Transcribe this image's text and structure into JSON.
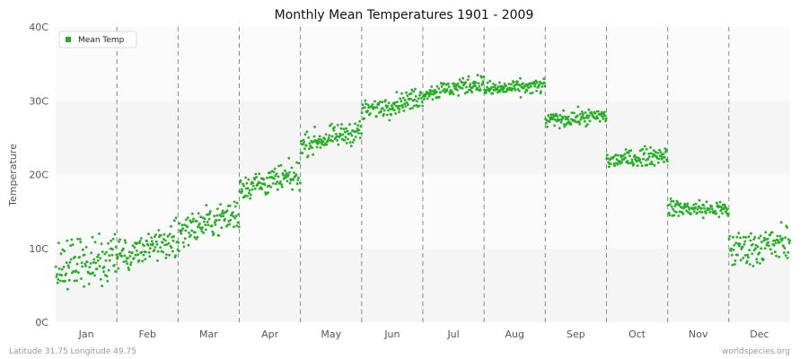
{
  "chart_data": {
    "type": "scatter",
    "title": "Monthly Mean Temperatures 1901 - 2009",
    "ylabel": "Temperature",
    "xlabel": "",
    "ylim": [
      0,
      40
    ],
    "yticks": [
      0,
      10,
      20,
      30,
      40
    ],
    "ytick_labels": [
      "0C",
      "10C",
      "20C",
      "30C",
      "40C"
    ],
    "categories": [
      "Jan",
      "Feb",
      "Mar",
      "Apr",
      "May",
      "Jun",
      "Jul",
      "Aug",
      "Sep",
      "Oct",
      "Nov",
      "Dec"
    ],
    "grid": "banded-horizontal, dashed month separators",
    "legend": {
      "position": "top-left",
      "entries": [
        "Mean Temp"
      ]
    },
    "series": [
      {
        "name": "Mean Temp",
        "color": "#22b022",
        "points_per_month": 109,
        "month_start_mean": [
          7.6,
          8.6,
          12.2,
          18.3,
          24.0,
          28.5,
          31.0,
          31.5,
          27.3,
          21.8,
          15.5,
          9.8
        ],
        "month_end_mean": [
          8.8,
          11.5,
          14.8,
          19.8,
          26.0,
          30.5,
          32.5,
          32.0,
          28.0,
          22.8,
          15.2,
          10.8
        ],
        "month_spread": [
          4.0,
          3.0,
          2.5,
          2.2,
          1.7,
          1.6,
          1.4,
          1.2,
          1.2,
          1.4,
          1.4,
          3.0
        ]
      }
    ]
  },
  "footer": {
    "left": "Latitude 31.75 Longitude 49.75",
    "right": "worldspecies.org"
  }
}
